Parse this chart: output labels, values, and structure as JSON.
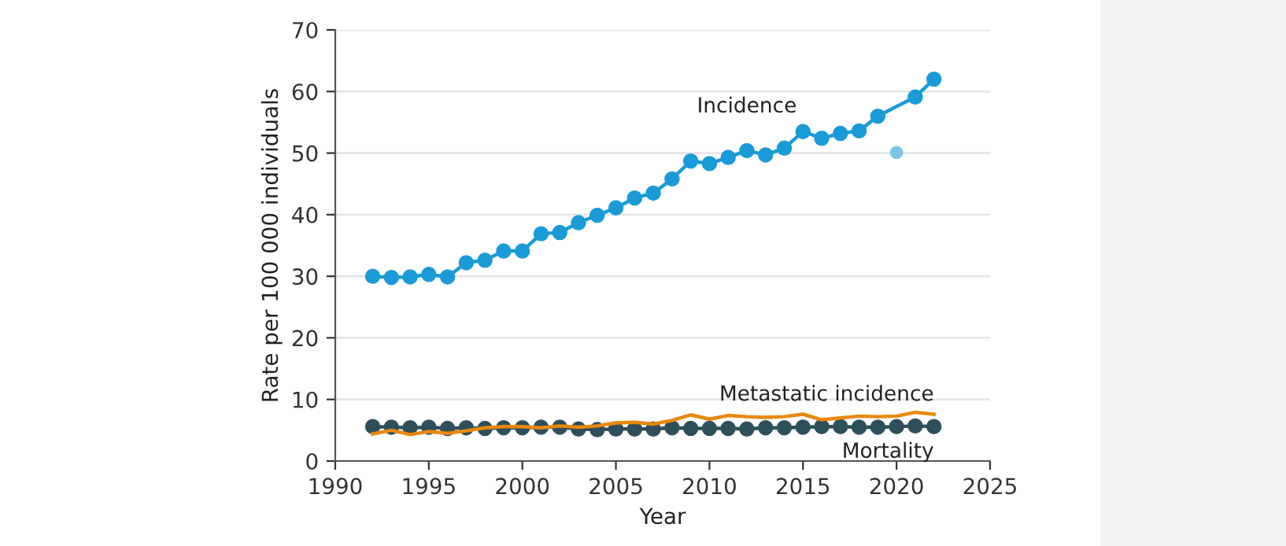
{
  "chart_data": {
    "type": "line",
    "xlabel": "Year",
    "ylabel": "Rate per 100 000 individuals",
    "xlim": [
      1990,
      2025
    ],
    "xticks": [
      1990,
      1995,
      2000,
      2005,
      2010,
      2015,
      2020,
      2025
    ],
    "ylim": [
      0,
      70
    ],
    "yticks": [
      0,
      10,
      20,
      30,
      40,
      50,
      60,
      70
    ],
    "grid": "y",
    "legend": false,
    "series": [
      {
        "name": "Incidence",
        "color": "#1a9bd7",
        "marker": "circle",
        "x": [
          1992,
          1993,
          1994,
          1995,
          1996,
          1997,
          1998,
          1999,
          2000,
          2001,
          2002,
          2003,
          2004,
          2005,
          2006,
          2007,
          2008,
          2009,
          2010,
          2011,
          2012,
          2013,
          2014,
          2015,
          2016,
          2017,
          2018,
          2019,
          2021,
          2022
        ],
        "values": [
          30,
          29.8,
          29.9,
          30.3,
          29.9,
          32.2,
          32.6,
          34.1,
          34.1,
          36.9,
          37.1,
          38.7,
          39.9,
          41.1,
          42.7,
          43.5,
          45.8,
          48.7,
          48.3,
          49.3,
          50.4,
          49.7,
          50.8,
          53.5,
          52.4,
          53.2,
          53.6,
          56,
          59.1,
          62
        ]
      },
      {
        "type": "scatter",
        "color": "#7cc6ea",
        "marker": "circle",
        "x": [
          2020
        ],
        "values": [
          50.1
        ]
      },
      {
        "name": "Metastatic incidence",
        "color": "#e8890c",
        "marker": "none",
        "x": [
          1992,
          1993,
          1994,
          1995,
          1996,
          1997,
          1998,
          1999,
          2000,
          2001,
          2002,
          2003,
          2004,
          2005,
          2006,
          2007,
          2008,
          2009,
          2010,
          2011,
          2012,
          2013,
          2014,
          2015,
          2016,
          2017,
          2018,
          2019,
          2020,
          2021,
          2022
        ],
        "values": [
          4.4,
          5.0,
          4.3,
          4.8,
          4.5,
          4.9,
          5.4,
          5.6,
          5.6,
          5.4,
          5.7,
          5.5,
          5.7,
          6.2,
          6.3,
          6.0,
          6.6,
          7.5,
          6.8,
          7.4,
          7.2,
          7.1,
          7.2,
          7.6,
          6.7,
          7.0,
          7.3,
          7.2,
          7.3,
          7.9,
          7.6
        ]
      },
      {
        "name": "Mortality",
        "color": "#2f4f5a",
        "marker": "circle",
        "x": [
          1992,
          1993,
          1994,
          1995,
          1996,
          1997,
          1998,
          1999,
          2000,
          2001,
          2002,
          2003,
          2004,
          2005,
          2006,
          2007,
          2008,
          2009,
          2010,
          2011,
          2012,
          2013,
          2014,
          2015,
          2016,
          2017,
          2018,
          2019,
          2020,
          2021,
          2022
        ],
        "values": [
          5.6,
          5.5,
          5.4,
          5.5,
          5.3,
          5.4,
          5.3,
          5.4,
          5.4,
          5.5,
          5.5,
          5.2,
          5.1,
          5.2,
          5.2,
          5.2,
          5.4,
          5.3,
          5.3,
          5.3,
          5.2,
          5.4,
          5.4,
          5.5,
          5.6,
          5.6,
          5.5,
          5.5,
          5.6,
          5.7,
          5.6
        ]
      }
    ]
  }
}
